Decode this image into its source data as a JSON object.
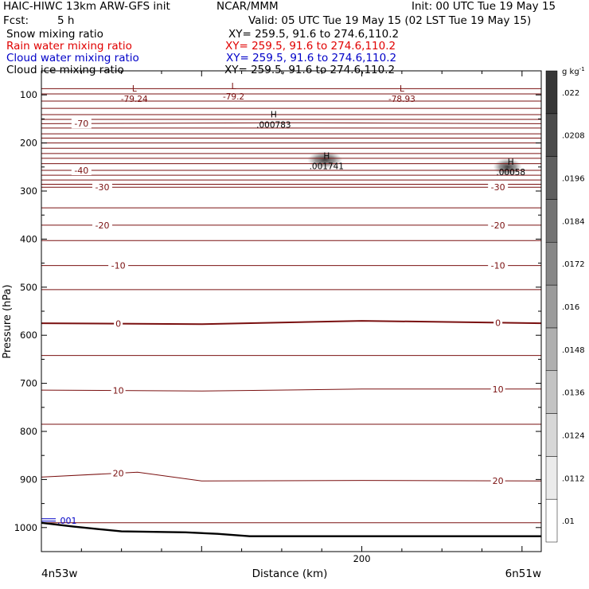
{
  "header": {
    "title": "HAIC-HIWC 13km ARW-GFS init",
    "center": "NCAR/MMM",
    "init": "Init: 00 UTC Tue 19 May 15",
    "fcst_label": "Fcst:",
    "fcst_value": "5 h",
    "valid": "Valid: 05 UTC Tue 19 May 15 (02 LST Tue 19 May 15)"
  },
  "fields": [
    {
      "name": "Snow mixing ratio",
      "xy": "XY= 259.5, 91.6 to 274.6,110.2",
      "color": "#000000"
    },
    {
      "name": "Rain water mixing ratio",
      "xy": "XY= 259.5, 91.6 to 274.6,110.2",
      "color": "#e00000"
    },
    {
      "name": "Cloud water mixing ratio",
      "xy": "XY= 259.5, 91.6 to 274.6,110.2",
      "color": "#0000c8"
    },
    {
      "name": "Cloud ice mixing ratio",
      "xy": "XY= 259.5, 91.6 to 274.6,110.2",
      "color": "#000000"
    }
  ],
  "colors": {
    "temperature": "#7a1010",
    "ground": "#000000",
    "cloud_water": "#0000c8",
    "shade": "#444444"
  },
  "chart_data": {
    "type": "heatmap",
    "xlabel": "Distance (km)",
    "ylabel": "Pressure (hPa)",
    "xlim": [
      0,
      312
    ],
    "ylim": [
      1050,
      50
    ],
    "x_tick_labels": [
      {
        "x": 200,
        "label": "200"
      }
    ],
    "x_endpoint_labels": [
      "4n53w",
      "6n51w"
    ],
    "y_ticks": [
      100,
      200,
      300,
      400,
      500,
      600,
      700,
      800,
      900,
      1000
    ],
    "y_tick_labels": [
      "100",
      "200",
      "300",
      "400",
      "500",
      "600",
      "700",
      "800",
      "900",
      "1000"
    ],
    "colorbar": {
      "units": "g kg",
      "unit_exp": "-1",
      "values": [
        0.01,
        0.0112,
        0.0124,
        0.0136,
        0.0148,
        0.016,
        0.0172,
        0.0184,
        0.0196,
        0.0208,
        0.022
      ],
      "labels": [
        ".01",
        ".0112",
        ".0124",
        ".0136",
        ".0148",
        ".016",
        ".0172",
        ".0184",
        ".0196",
        ".0208",
        ".022"
      ]
    },
    "temperature_contours": [
      {
        "label": "-70",
        "points": [
          [
            0,
            160
          ],
          [
            150,
            158
          ],
          [
            312,
            160
          ]
        ],
        "label_x": 25
      },
      {
        "label": "-40",
        "points": [
          [
            0,
            257
          ],
          [
            312,
            257
          ]
        ],
        "label_x": 25
      },
      {
        "label": "-30",
        "points": [
          [
            0,
            292
          ],
          [
            312,
            292
          ]
        ],
        "label_x": 38
      },
      {
        "label": "-30",
        "points": [
          [
            0,
            292
          ],
          [
            312,
            292
          ]
        ],
        "label_x": 285
      },
      {
        "label": "-20",
        "points": [
          [
            0,
            371
          ],
          [
            312,
            371
          ]
        ],
        "label_x": 38
      },
      {
        "label": "-20",
        "points": [
          [
            0,
            371
          ],
          [
            312,
            371
          ]
        ],
        "label_x": 285
      },
      {
        "label": "-10",
        "points": [
          [
            0,
            455
          ],
          [
            312,
            455
          ]
        ],
        "label_x": 48
      },
      {
        "label": "-10",
        "points": [
          [
            0,
            455
          ],
          [
            312,
            455
          ]
        ],
        "label_x": 285
      },
      {
        "label": "0",
        "points": [
          [
            0,
            575
          ],
          [
            100,
            577
          ],
          [
            200,
            570
          ],
          [
            312,
            575
          ]
        ],
        "label_x": 48
      },
      {
        "label": "0",
        "points": [
          [
            0,
            575
          ],
          [
            100,
            577
          ],
          [
            200,
            570
          ],
          [
            312,
            575
          ]
        ],
        "label_x": 285
      },
      {
        "label": "10",
        "points": [
          [
            0,
            714
          ],
          [
            100,
            716
          ],
          [
            200,
            712
          ],
          [
            312,
            712
          ]
        ],
        "label_x": 48
      },
      {
        "label": "10",
        "points": [
          [
            0,
            714
          ],
          [
            100,
            716
          ],
          [
            200,
            712
          ],
          [
            312,
            712
          ]
        ],
        "label_x": 285
      },
      {
        "label": "20",
        "points": [
          [
            0,
            895
          ],
          [
            60,
            885
          ],
          [
            100,
            903
          ],
          [
            200,
            902
          ],
          [
            312,
            903
          ]
        ],
        "label_x": 48
      },
      {
        "label": "20",
        "points": [
          [
            0,
            895
          ],
          [
            60,
            885
          ],
          [
            100,
            903
          ],
          [
            200,
            902
          ],
          [
            312,
            903
          ]
        ],
        "label_x": 285
      }
    ],
    "unlabeled_isotherms": [
      87,
      98,
      113,
      128,
      141,
      151,
      169,
      181,
      190,
      200,
      211,
      222,
      232,
      243,
      267,
      277,
      286,
      335,
      403,
      505,
      642,
      785,
      990
    ],
    "extrema": [
      {
        "type": "L",
        "value": "-79.24",
        "x": 58,
        "p": 98
      },
      {
        "type": "L",
        "value": "-79.2",
        "x": 120,
        "p": 93
      },
      {
        "type": "L",
        "value": "-78.93",
        "x": 225,
        "p": 98
      },
      {
        "type": "H",
        "value": ".000783",
        "x": 145,
        "p": 152
      },
      {
        "type": "H",
        "value": ".001741",
        "x": 178,
        "p": 238
      },
      {
        "type": "H",
        "value": ".00058",
        "x": 293,
        "p": 250
      }
    ],
    "ice_cells": [
      {
        "x": 177,
        "p": 235,
        "rx_km": 11,
        "rp_hpa": 18,
        "peak": 0.0136
      },
      {
        "x": 291,
        "p": 250,
        "rx_km": 9,
        "rp_hpa": 18,
        "peak": 0.0208
      }
    ],
    "cloud_water_label": {
      "value": ".001",
      "x": 0,
      "p": 990
    },
    "ground_surface": [
      [
        0,
        990
      ],
      [
        20,
        998
      ],
      [
        50,
        1008
      ],
      [
        90,
        1010
      ],
      [
        110,
        1013
      ],
      [
        130,
        1018
      ],
      [
        312,
        1018
      ]
    ]
  }
}
